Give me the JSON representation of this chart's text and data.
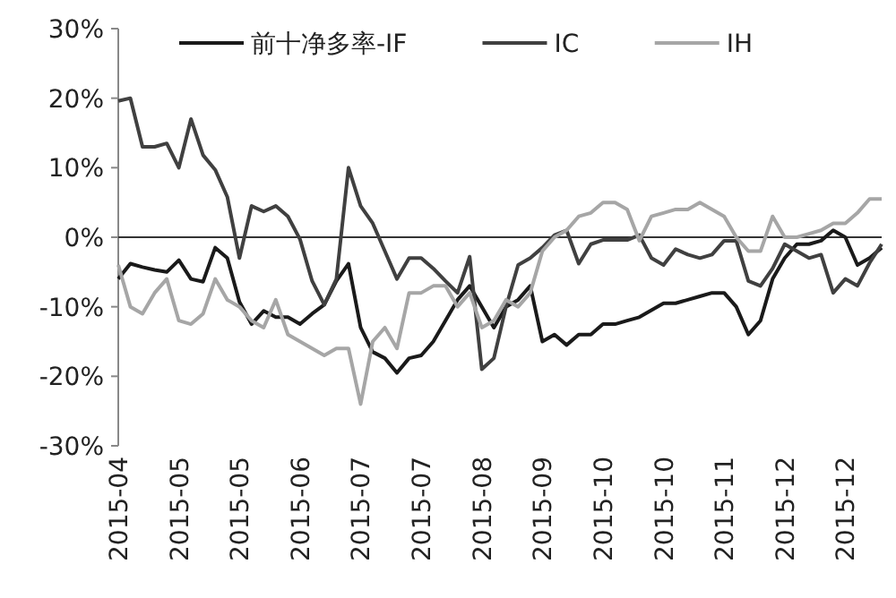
{
  "chart_data": {
    "type": "line",
    "categories": [
      "2015-04",
      null,
      null,
      null,
      null,
      "2015-05",
      null,
      null,
      null,
      null,
      "2015-05",
      null,
      null,
      null,
      null,
      "2015-06",
      null,
      null,
      null,
      null,
      "2015-07",
      null,
      null,
      null,
      null,
      "2015-07",
      null,
      null,
      null,
      null,
      "2015-08",
      null,
      null,
      null,
      null,
      "2015-09",
      null,
      null,
      null,
      null,
      "2015-10",
      null,
      null,
      null,
      null,
      "2015-10",
      null,
      null,
      null,
      null,
      "2015-11",
      null,
      null,
      null,
      null,
      "2015-12",
      null,
      null,
      null,
      null,
      "2015-12",
      null,
      null,
      null
    ],
    "series": [
      {
        "name": "前十净多率-IF",
        "color": "#1a1a1a",
        "values": [
          -6,
          -3.8,
          -4.3,
          -4.7,
          -5,
          -3.3,
          -6,
          -6.4,
          -1.5,
          -3,
          -9.3,
          -12.5,
          -10.6,
          -11.5,
          -11.5,
          -12.5,
          -11,
          -9.7,
          -6.3,
          -3.8,
          -13,
          -16.5,
          -17.4,
          -19.5,
          -17.4,
          -17,
          -15,
          -12,
          -9,
          -7,
          -10,
          -13,
          -10,
          -9,
          -7,
          -15,
          -14,
          -15.5,
          -14,
          -14,
          -12.5,
          -12.5,
          -12,
          -11.5,
          -10.5,
          -9.5,
          -9.5,
          -9,
          -8.5,
          -8,
          -8,
          -10,
          -14,
          -12,
          -6,
          -3,
          -1,
          -1,
          -0.5,
          1,
          0,
          -4,
          -3,
          -1.5
        ]
      },
      {
        "name": "IC",
        "color": "#404040",
        "values": [
          19.6,
          20,
          13,
          13,
          13.5,
          10,
          17,
          11.8,
          9.7,
          5.8,
          -3,
          4.5,
          3.7,
          4.5,
          3,
          -0.3,
          -6.3,
          -9.7,
          -6,
          10,
          4.5,
          2,
          -2,
          -6,
          -3,
          -3,
          -4.5,
          -6.3,
          -8,
          -2.8,
          -19,
          -17.4,
          -10,
          -4,
          -3,
          -1.5,
          0.3,
          1,
          -3.8,
          -1,
          -0.4,
          -0.4,
          -0.4,
          0.3,
          -3,
          -4,
          -1.7,
          -2.5,
          -3,
          -2.5,
          -0.5,
          -0.5,
          -6.3,
          -7,
          -4.5,
          -1,
          -2,
          -3,
          -2.5,
          -8,
          -6,
          -7,
          -3.7,
          -1
        ]
      },
      {
        "name": "IH",
        "color": "#a6a6a6",
        "values": [
          -4,
          -10,
          -11,
          -8,
          -6,
          -12,
          -12.5,
          -11,
          -6,
          -9,
          -10,
          -12,
          -13,
          -9,
          -14,
          -15,
          -16,
          -17,
          -16,
          -16,
          -24,
          -15,
          -13,
          -16,
          -8,
          -8,
          -7,
          -7,
          -10,
          -8,
          -13,
          -12,
          -9,
          -10,
          -8,
          -2,
          0,
          1,
          3,
          3.5,
          5,
          5,
          4,
          -0.5,
          3,
          3.5,
          4,
          4,
          5,
          4,
          3,
          0,
          -2,
          -2,
          3,
          0,
          0,
          0.5,
          1,
          2,
          2,
          3.5,
          5.5,
          5.5
        ]
      }
    ],
    "ylim": [
      -30,
      30
    ],
    "yticks": [
      {
        "value": -30,
        "label": "-30%"
      },
      {
        "value": -20,
        "label": "-20%"
      },
      {
        "value": -10,
        "label": "-10%"
      },
      {
        "value": 0,
        "label": "0%"
      },
      {
        "value": 10,
        "label": "10%"
      },
      {
        "value": 20,
        "label": "20%"
      },
      {
        "value": 30,
        "label": "30%"
      }
    ],
    "legend": "top"
  }
}
